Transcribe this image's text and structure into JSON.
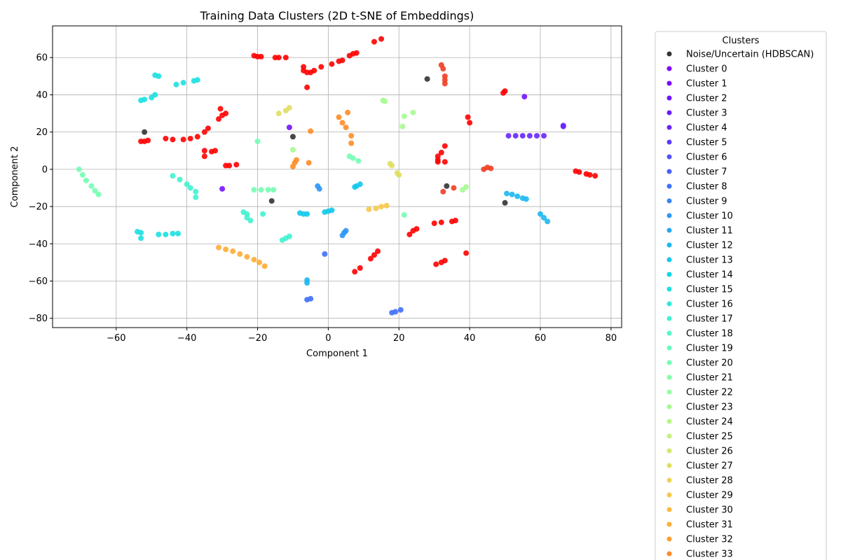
{
  "chart_data": {
    "type": "scatter",
    "title": "Training Data Clusters (2D t-SNE of Embeddings)",
    "xlabel": "Component 1",
    "ylabel": "Component 2",
    "xlim": [
      -78,
      83
    ],
    "ylim": [
      -85,
      77
    ],
    "xticks": [
      -60,
      -40,
      -20,
      0,
      20,
      40,
      60,
      80
    ],
    "yticks": [
      -80,
      -60,
      -40,
      -20,
      0,
      20,
      40,
      60
    ],
    "grid": true,
    "legend": {
      "title": "Clusters",
      "placement": "outside-right",
      "entries": [
        {
          "label": "Noise/Uncertain (HDBSCAN)",
          "color": "#333333"
        },
        {
          "label": "Cluster 0",
          "color": "#8000ff"
        },
        {
          "label": "Cluster 1",
          "color": "#7a09ff"
        },
        {
          "label": "Cluster 2",
          "color": "#7413ff"
        },
        {
          "label": "Cluster 3",
          "color": "#6e1cff"
        },
        {
          "label": "Cluster 4",
          "color": "#6826fe"
        },
        {
          "label": "Cluster 5",
          "color": "#5c3bfe"
        },
        {
          "label": "Cluster 6",
          "color": "#5450fd"
        },
        {
          "label": "Cluster 7",
          "color": "#4a5ffc"
        },
        {
          "label": "Cluster 8",
          "color": "#4070fb"
        },
        {
          "label": "Cluster 9",
          "color": "#3884f9"
        },
        {
          "label": "Cluster 10",
          "color": "#2e96f6"
        },
        {
          "label": "Cluster 11",
          "color": "#26a8f3"
        },
        {
          "label": "Cluster 12",
          "color": "#1cb8ef"
        },
        {
          "label": "Cluster 13",
          "color": "#12c8eb"
        },
        {
          "label": "Cluster 14",
          "color": "#0ad5e6"
        },
        {
          "label": "Cluster 15",
          "color": "#1ce0e0"
        },
        {
          "label": "Cluster 16",
          "color": "#2eead8"
        },
        {
          "label": "Cluster 17",
          "color": "#40f2d0"
        },
        {
          "label": "Cluster 18",
          "color": "#52f8c7"
        },
        {
          "label": "Cluster 19",
          "color": "#64fcbd"
        },
        {
          "label": "Cluster 20",
          "color": "#74feb2"
        },
        {
          "label": "Cluster 21",
          "color": "#84ffa8"
        },
        {
          "label": "Cluster 22",
          "color": "#96fe9d"
        },
        {
          "label": "Cluster 23",
          "color": "#a6fb92"
        },
        {
          "label": "Cluster 24",
          "color": "#b6f686"
        },
        {
          "label": "Cluster 25",
          "color": "#c4f07a"
        },
        {
          "label": "Cluster 26",
          "color": "#d4e86e"
        },
        {
          "label": "Cluster 27",
          "color": "#e0de62"
        },
        {
          "label": "Cluster 28",
          "color": "#ecd456"
        },
        {
          "label": "Cluster 29",
          "color": "#f6c84a"
        },
        {
          "label": "Cluster 30",
          "color": "#ffba3e"
        },
        {
          "label": "Cluster 31",
          "color": "#ffac36"
        },
        {
          "label": "Cluster 32",
          "color": "#ff9c2e"
        },
        {
          "label": "Cluster 33",
          "color": "#ff8c26"
        }
      ]
    },
    "groups": [
      {
        "color": "#ff0000",
        "points": [
          [
            -21,
            61
          ],
          [
            -20,
            60.5
          ],
          [
            -19,
            60.5
          ],
          [
            -15,
            60
          ],
          [
            -14,
            60
          ],
          [
            -12,
            60
          ],
          [
            -7,
            55
          ],
          [
            -7,
            53
          ],
          [
            -6,
            52
          ],
          [
            -5,
            52
          ],
          [
            -4,
            53
          ],
          [
            -2,
            55
          ],
          [
            1,
            56.5
          ],
          [
            3,
            58
          ],
          [
            4,
            58.5
          ],
          [
            6,
            61
          ],
          [
            7,
            62
          ],
          [
            8,
            62.5
          ],
          [
            13,
            68.5
          ],
          [
            15,
            70
          ],
          [
            -6,
            44
          ],
          [
            -53,
            15
          ],
          [
            -52,
            15
          ],
          [
            -51,
            15.5
          ],
          [
            -46,
            16.5
          ],
          [
            -44,
            16
          ],
          [
            -41,
            16
          ],
          [
            -39,
            16.5
          ],
          [
            -37,
            17.5
          ],
          [
            -35,
            20
          ],
          [
            -34,
            22
          ],
          [
            -31,
            27
          ],
          [
            -30,
            29
          ],
          [
            -29,
            30
          ],
          [
            -30.5,
            32.5
          ],
          [
            -35,
            10
          ],
          [
            -33,
            9.5
          ],
          [
            -35,
            7
          ],
          [
            -32,
            10
          ],
          [
            -29,
            2
          ],
          [
            -28,
            2
          ],
          [
            -26,
            2.5
          ],
          [
            12,
            -48
          ],
          [
            13,
            -46
          ],
          [
            14,
            -44
          ],
          [
            7.5,
            -55
          ],
          [
            9,
            -53
          ],
          [
            23,
            -35
          ],
          [
            24,
            -33
          ],
          [
            25,
            -32
          ],
          [
            30,
            -29
          ],
          [
            32,
            -28.5
          ],
          [
            30.5,
            -51
          ],
          [
            32,
            -50
          ],
          [
            33,
            -49
          ],
          [
            35,
            -28
          ],
          [
            36,
            -27.5
          ],
          [
            39,
            -45
          ],
          [
            31,
            5
          ],
          [
            31,
            7
          ],
          [
            32,
            9
          ],
          [
            33,
            12.5
          ],
          [
            31,
            4
          ],
          [
            33,
            4
          ],
          [
            39.5,
            28
          ],
          [
            40,
            25
          ],
          [
            49.5,
            41
          ],
          [
            50,
            42
          ],
          [
            70,
            -1
          ],
          [
            71,
            -1.5
          ],
          [
            73,
            -2.5
          ],
          [
            74,
            -3
          ],
          [
            75.5,
            -3.5
          ]
        ]
      },
      {
        "color": "#f03e23",
        "points": [
          [
            32,
            56
          ],
          [
            32.5,
            54
          ],
          [
            33,
            50
          ],
          [
            33,
            48
          ],
          [
            33,
            46
          ],
          [
            44,
            0
          ],
          [
            45,
            1
          ],
          [
            46,
            0.5
          ],
          [
            32.5,
            -12
          ],
          [
            35.5,
            -10
          ]
        ]
      },
      {
        "color": "#333333",
        "points": [
          [
            -52,
            20
          ],
          [
            -10,
            17.5
          ],
          [
            -16,
            -17
          ],
          [
            28,
            48.5
          ],
          [
            33.5,
            -9
          ],
          [
            50,
            -18
          ]
        ]
      },
      {
        "color": "#7413ff",
        "points": [
          [
            -30,
            -10.5
          ],
          [
            55.5,
            39
          ],
          [
            -11,
            22.5
          ]
        ]
      },
      {
        "color": "#6826fe",
        "points": [
          [
            51,
            18
          ],
          [
            53,
            18
          ],
          [
            55,
            18
          ],
          [
            57,
            18
          ],
          [
            59,
            18
          ],
          [
            61,
            18
          ],
          [
            66.5,
            23
          ],
          [
            66.5,
            23.5
          ]
        ]
      },
      {
        "color": "#4070fb",
        "points": [
          [
            -5,
            -69.5
          ],
          [
            -6,
            -70
          ],
          [
            18,
            -77
          ],
          [
            19,
            -76.5
          ],
          [
            20.5,
            -75.5
          ],
          [
            -1,
            -45.5
          ]
        ]
      },
      {
        "color": "#2e96f6",
        "points": [
          [
            -3,
            -9
          ],
          [
            -2.5,
            -10.5
          ],
          [
            4,
            -35.5
          ],
          [
            4.5,
            -34
          ],
          [
            5,
            -33
          ]
        ]
      },
      {
        "color": "#1cb8ef",
        "points": [
          [
            -6,
            -59.5
          ],
          [
            -6,
            -61
          ],
          [
            50.5,
            -13
          ],
          [
            52,
            -13.5
          ],
          [
            53.5,
            -14.5
          ],
          [
            55,
            -15.5
          ],
          [
            56,
            -16
          ],
          [
            60,
            -24
          ],
          [
            61,
            -26
          ],
          [
            62,
            -28
          ]
        ]
      },
      {
        "color": "#12c8eb",
        "points": [
          [
            7.5,
            -9.5
          ],
          [
            9,
            -8
          ],
          [
            8,
            -9
          ],
          [
            -8,
            -23.5
          ],
          [
            -7,
            -24
          ],
          [
            -6,
            -24
          ],
          [
            -1,
            -23
          ],
          [
            0,
            -22.5
          ],
          [
            1,
            -22
          ]
        ]
      },
      {
        "color": "#1ce0e0",
        "points": [
          [
            -54,
            -33.5
          ],
          [
            -53,
            -34
          ],
          [
            -53,
            -37
          ],
          [
            -48,
            -35
          ],
          [
            -46,
            -35
          ],
          [
            -44,
            -34.5
          ],
          [
            -42.5,
            -34.5
          ],
          [
            -53,
            37
          ],
          [
            -52,
            37.5
          ],
          [
            -50,
            38.5
          ],
          [
            -49,
            40
          ],
          [
            -49,
            50.5
          ],
          [
            -48,
            50
          ],
          [
            -43,
            45.5
          ],
          [
            -41,
            46.5
          ],
          [
            -38,
            47.5
          ],
          [
            -37,
            48
          ]
        ]
      },
      {
        "color": "#40f2d0",
        "points": [
          [
            -44,
            -3.5
          ],
          [
            -42,
            -5.5
          ],
          [
            -40,
            -8
          ],
          [
            -39,
            -10
          ],
          [
            -37.5,
            -12
          ],
          [
            -37.5,
            -15
          ],
          [
            -24,
            -23
          ],
          [
            -23,
            -24
          ],
          [
            -23,
            -26
          ],
          [
            -22,
            -27.5
          ],
          [
            -13,
            -38
          ],
          [
            -12,
            -37
          ],
          [
            -11,
            -36
          ],
          [
            -18.5,
            -24
          ]
        ]
      },
      {
        "color": "#74feb2",
        "points": [
          [
            -70.5,
            0
          ],
          [
            -69.5,
            -3
          ],
          [
            -68.5,
            -6
          ],
          [
            -67,
            -9
          ],
          [
            -66,
            -11.5
          ],
          [
            -65,
            -13.5
          ],
          [
            -21,
            -11
          ],
          [
            -19,
            -11
          ],
          [
            -17,
            -11
          ],
          [
            -15.5,
            -11
          ],
          [
            -20,
            15
          ],
          [
            6,
            7
          ],
          [
            7,
            6
          ],
          [
            8.5,
            4.5
          ],
          [
            21.5,
            -24.5
          ]
        ]
      },
      {
        "color": "#a6fb92",
        "points": [
          [
            -10,
            10.5
          ],
          [
            15.5,
            37
          ],
          [
            16,
            36.5
          ],
          [
            21,
            23
          ],
          [
            21.5,
            28.5
          ],
          [
            24,
            30.5
          ],
          [
            38,
            -11
          ],
          [
            39,
            -9.5
          ]
        ]
      },
      {
        "color": "#e0de62",
        "points": [
          [
            -14,
            30
          ],
          [
            -12,
            31.5
          ],
          [
            -11,
            33
          ],
          [
            17.5,
            3
          ],
          [
            18,
            2
          ],
          [
            19.5,
            -2
          ],
          [
            20,
            -3
          ]
        ]
      },
      {
        "color": "#f6c84a",
        "points": [
          [
            11.5,
            -21.5
          ],
          [
            13.5,
            -21
          ],
          [
            15,
            -20
          ],
          [
            16.5,
            -19.5
          ]
        ]
      },
      {
        "color": "#ffac36",
        "points": [
          [
            -31,
            -42
          ],
          [
            -29,
            -43
          ],
          [
            -27,
            -44
          ],
          [
            -25,
            -45.5
          ],
          [
            -23,
            -47
          ],
          [
            -21,
            -48.5
          ],
          [
            -19.5,
            -50
          ],
          [
            -18,
            -52
          ]
        ]
      },
      {
        "color": "#ff8c26",
        "points": [
          [
            3,
            28
          ],
          [
            4,
            25
          ],
          [
            5,
            22.5
          ],
          [
            6.5,
            18
          ],
          [
            6.5,
            14
          ],
          [
            -5,
            20.5
          ],
          [
            5.5,
            30.5
          ],
          [
            -5.5,
            3.5
          ],
          [
            -10,
            1.5
          ],
          [
            -9.5,
            3.5
          ],
          [
            -9,
            5
          ]
        ]
      }
    ]
  }
}
